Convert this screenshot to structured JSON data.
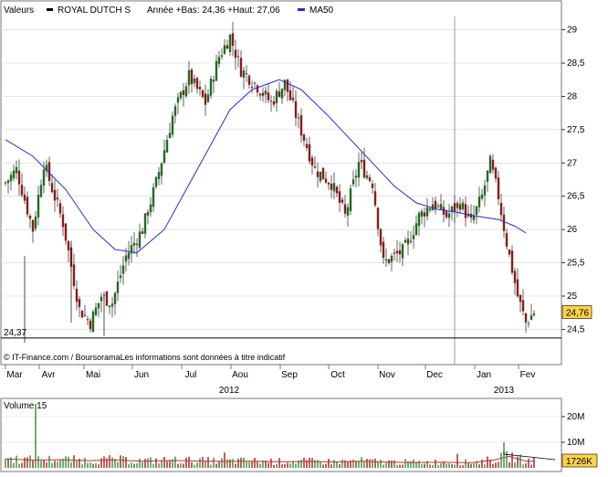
{
  "header": {
    "valeurs_label": "Valeurs",
    "instrument": "ROYAL DUTCH S",
    "range_text": "Année +Bas: 24,36 +Haut: 27,06",
    "ma_label": "MA50"
  },
  "colors": {
    "up": "#1f6b1f",
    "down": "#8b1a1a",
    "ma": "#2a2acc",
    "last_price_bg": "#ffd24a",
    "volume_up": "#2f8f2f",
    "volume_down": "#a01c1c",
    "volume_ma": "#c03030",
    "grid": "#d8d8d8"
  },
  "footer_credit": "© IT-Finance.com / BoursoramaLes informations sont données à titre indicatif",
  "chart_data": [
    {
      "type": "candlestick",
      "ylim": [
        24.3,
        29.2
      ],
      "y_ticks": [
        "29",
        "28,5",
        "28",
        "27,5",
        "27",
        "26,5",
        "26",
        "25,5",
        "25",
        "24,5"
      ],
      "y_tick_values": [
        29,
        28.5,
        28,
        27.5,
        27,
        26.5,
        26,
        25.5,
        25,
        24.5
      ],
      "x_months": [
        "Mar",
        "Avr",
        "Mai",
        "Jun",
        "Jul",
        "Aou",
        "Sep",
        "Oct",
        "Nov",
        "Dec",
        "Jan",
        "Fev"
      ],
      "x_years": [
        "2012",
        "2013"
      ],
      "low_marker_label": "24,37",
      "low_marker_value": 24.37,
      "last_price_label": "24,76",
      "last_price_value": 24.76,
      "ma_series_name": "MA50",
      "close_keypoints": [
        [
          0,
          26.7
        ],
        [
          4,
          26.9
        ],
        [
          10,
          26.0
        ],
        [
          14,
          27.0
        ],
        [
          21,
          26.1
        ],
        [
          27,
          24.8
        ],
        [
          31,
          24.6
        ],
        [
          35,
          25.0
        ],
        [
          39,
          24.9
        ],
        [
          44,
          25.6
        ],
        [
          50,
          26.0
        ],
        [
          55,
          26.7
        ],
        [
          61,
          27.7
        ],
        [
          67,
          28.3
        ],
        [
          73,
          27.9
        ],
        [
          78,
          28.6
        ],
        [
          82,
          28.9
        ],
        [
          86,
          28.4
        ],
        [
          91,
          28.2
        ],
        [
          97,
          27.9
        ],
        [
          102,
          28.2
        ],
        [
          107,
          27.6
        ],
        [
          113,
          26.9
        ],
        [
          119,
          26.7
        ],
        [
          124,
          26.2
        ],
        [
          129,
          27.0
        ],
        [
          134,
          26.7
        ],
        [
          138,
          25.5
        ],
        [
          142,
          25.6
        ],
        [
          146,
          25.7
        ],
        [
          151,
          26.2
        ],
        [
          156,
          26.4
        ],
        [
          161,
          26.2
        ],
        [
          166,
          26.4
        ],
        [
          170,
          26.1
        ],
        [
          174,
          26.5
        ],
        [
          177,
          27.0
        ],
        [
          180,
          26.5
        ],
        [
          183,
          25.8
        ],
        [
          187,
          25.0
        ],
        [
          190,
          24.6
        ],
        [
          193,
          24.76
        ]
      ],
      "ma_keypoints": [
        [
          0,
          27.35
        ],
        [
          10,
          27.1
        ],
        [
          22,
          26.6
        ],
        [
          32,
          26.0
        ],
        [
          40,
          25.7
        ],
        [
          48,
          25.65
        ],
        [
          58,
          26.0
        ],
        [
          66,
          26.6
        ],
        [
          74,
          27.2
        ],
        [
          82,
          27.8
        ],
        [
          90,
          28.1
        ],
        [
          100,
          28.25
        ],
        [
          108,
          28.1
        ],
        [
          118,
          27.7
        ],
        [
          126,
          27.35
        ],
        [
          134,
          27.0
        ],
        [
          142,
          26.65
        ],
        [
          150,
          26.4
        ],
        [
          158,
          26.3
        ],
        [
          166,
          26.25
        ],
        [
          172,
          26.2
        ],
        [
          180,
          26.15
        ],
        [
          186,
          26.05
        ],
        [
          190,
          25.95
        ]
      ]
    },
    {
      "type": "bar",
      "name": "Volume 15",
      "ylim": [
        0,
        25
      ],
      "y_ticks": [
        "20M",
        "10M"
      ],
      "y_tick_values": [
        20,
        10
      ],
      "last_volume_label": "1726K",
      "last_volume_value": 1.726,
      "volume_keypoints": [
        [
          0,
          3.5
        ],
        [
          10,
          3.0
        ],
        [
          20,
          3.2
        ],
        [
          30,
          2.8
        ],
        [
          40,
          3.1
        ],
        [
          50,
          2.6
        ],
        [
          60,
          2.9
        ],
        [
          70,
          2.7
        ],
        [
          80,
          2.5
        ],
        [
          90,
          2.6
        ],
        [
          100,
          2.4
        ],
        [
          110,
          2.5
        ],
        [
          120,
          2.3
        ],
        [
          130,
          2.6
        ],
        [
          140,
          2.2
        ],
        [
          150,
          2.1
        ],
        [
          160,
          2.2
        ],
        [
          170,
          2.0
        ],
        [
          178,
          3.0
        ],
        [
          184,
          4.5
        ],
        [
          190,
          2.6
        ]
      ],
      "spike_at": [
        [
          11,
          26
        ],
        [
          80,
          6
        ],
        [
          165,
          5.5
        ]
      ]
    }
  ]
}
